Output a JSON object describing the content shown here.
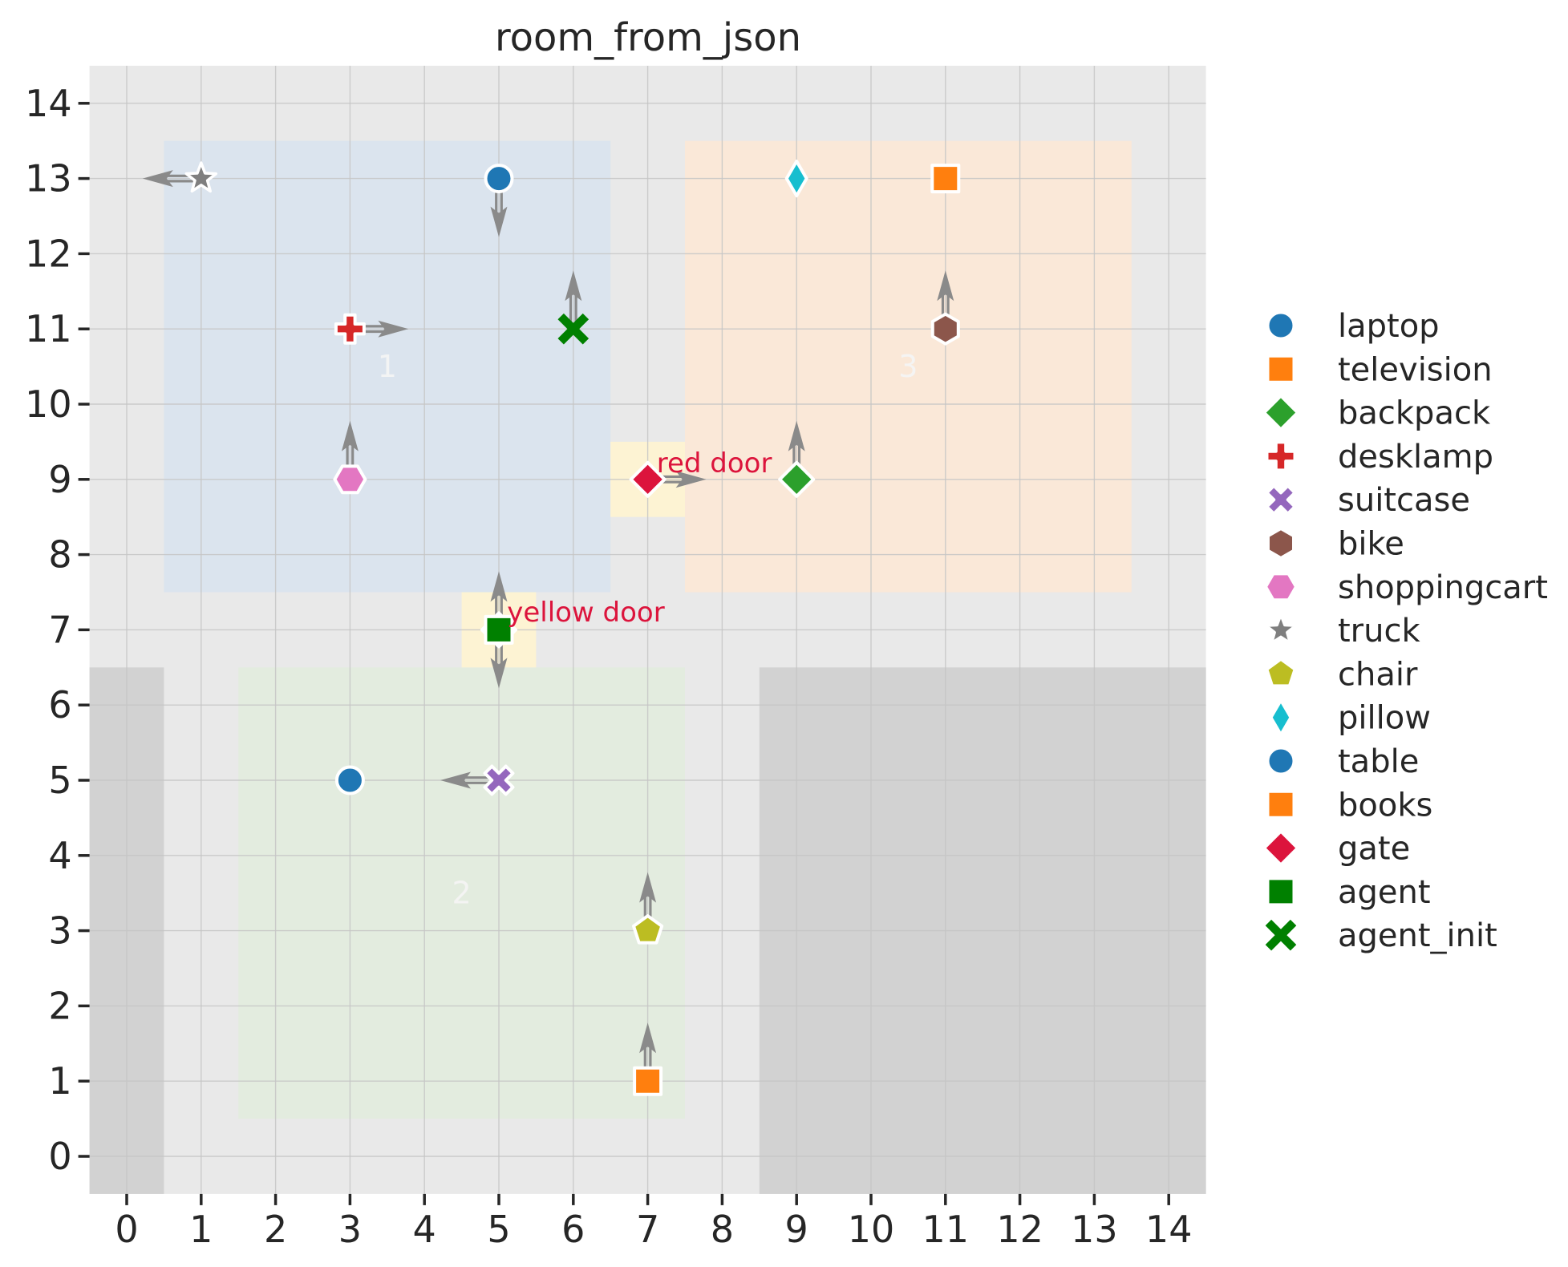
{
  "title": "room_from_json",
  "chart_data": {
    "type": "scatter",
    "title": "room_from_json",
    "xlim": [
      -0.5,
      14.5
    ],
    "ylim": [
      -0.5,
      14.5
    ],
    "x_ticks": [
      0,
      1,
      2,
      3,
      4,
      5,
      6,
      7,
      8,
      9,
      10,
      11,
      12,
      13,
      14
    ],
    "y_ticks": [
      0,
      1,
      2,
      3,
      4,
      5,
      6,
      7,
      8,
      9,
      10,
      11,
      12,
      13,
      14
    ],
    "grid": true,
    "background_color": "#e9e9e9",
    "grid_color": "#c6c6c6",
    "tick_color": "#262626",
    "arrow_color": "#8a8a8a",
    "room_label_color": "#f5f5f5",
    "rooms": [
      {
        "label": "1",
        "x_min": 0.5,
        "x_max": 6.5,
        "y_min": 7.5,
        "y_max": 13.5,
        "fill": "#dbe4ee",
        "label_x": 3.5,
        "label_y": 10.5
      },
      {
        "label": "2",
        "x_min": 1.5,
        "x_max": 7.5,
        "y_min": 0.5,
        "y_max": 6.5,
        "fill": "#e3ecdf",
        "label_x": 4.5,
        "label_y": 3.5
      },
      {
        "label": "3",
        "x_min": 7.5,
        "x_max": 13.5,
        "y_min": 7.5,
        "y_max": 13.5,
        "fill": "#fae8d8",
        "label_x": 10.5,
        "label_y": 10.5
      }
    ],
    "blocked_areas": [
      {
        "name": "blocked-left",
        "x_min": -0.5,
        "x_max": 0.5,
        "y_min": -0.5,
        "y_max": 6.5,
        "fill": "#d2d2d2"
      },
      {
        "name": "blocked-bottom-right",
        "x_min": 8.5,
        "x_max": 14.5,
        "y_min": -0.5,
        "y_max": 6.5,
        "fill": "#d2d2d2"
      }
    ],
    "doors": [
      {
        "label": "red door",
        "x": 7,
        "y": 9,
        "x_min": 6.5,
        "x_max": 7.5,
        "y_min": 8.5,
        "y_max": 9.5,
        "fill": "#fdf3d3",
        "label_x": 7.12,
        "label_y": 9.22,
        "label_color": "#dc143c"
      },
      {
        "label": "yellow door",
        "x": 5,
        "y": 7,
        "x_min": 4.5,
        "x_max": 5.5,
        "y_min": 6.5,
        "y_max": 7.5,
        "fill": "#fdf3d3",
        "label_x": 5.11,
        "label_y": 7.24,
        "label_color": "#dc143c"
      }
    ],
    "objects": [
      {
        "name": "truck",
        "marker": "star",
        "color": "#7f7f7f",
        "x": 1,
        "y": 13,
        "arrow": "left"
      },
      {
        "name": "laptop",
        "marker": "circle",
        "color": "#1f77b4",
        "x": 5,
        "y": 13,
        "arrow": "down"
      },
      {
        "name": "pillow",
        "marker": "thin-diamond",
        "color": "#17becf",
        "x": 9,
        "y": 13,
        "arrow": null
      },
      {
        "name": "television",
        "marker": "square",
        "color": "#ff7f0e",
        "x": 11,
        "y": 13,
        "arrow": null
      },
      {
        "name": "desklamp",
        "marker": "plus",
        "color": "#d62728",
        "x": 3,
        "y": 11,
        "arrow": "right"
      },
      {
        "name": "agent_init",
        "marker": "x-thin",
        "color": "#008000",
        "x": 6,
        "y": 11,
        "arrow": "up"
      },
      {
        "name": "bike",
        "marker": "hexagon",
        "color": "#8c564b",
        "x": 11,
        "y": 11,
        "arrow": "up"
      },
      {
        "name": "shoppingcart",
        "marker": "hexagon-flat",
        "color": "#e377c2",
        "x": 3,
        "y": 9,
        "arrow": "up"
      },
      {
        "name": "gate",
        "marker": "diamond",
        "color": "#dc143c",
        "x": 7,
        "y": 9,
        "arrow": "right"
      },
      {
        "name": "backpack",
        "marker": "diamond",
        "color": "#2ca02c",
        "x": 9,
        "y": 9,
        "arrow": "up"
      },
      {
        "name": "gate",
        "marker": "diamond",
        "color": "#dc143c",
        "x": 5,
        "y": 7,
        "arrow": "up"
      },
      {
        "name": "agent",
        "marker": "square",
        "color": "#008000",
        "x": 5,
        "y": 7,
        "arrow": "down"
      },
      {
        "name": "table",
        "marker": "circle",
        "color": "#1f77b4",
        "x": 3,
        "y": 5,
        "arrow": null
      },
      {
        "name": "suitcase",
        "marker": "x-filled",
        "color": "#9467bd",
        "x": 5,
        "y": 5,
        "arrow": "left"
      },
      {
        "name": "chair",
        "marker": "pentagon",
        "color": "#bcbd22",
        "x": 7,
        "y": 3,
        "arrow": "up"
      },
      {
        "name": "books",
        "marker": "square",
        "color": "#ff7f0e",
        "x": 7,
        "y": 1,
        "arrow": "up"
      }
    ],
    "legend": {
      "position": "right",
      "items": [
        {
          "label": "laptop",
          "marker": "circle",
          "color": "#1f77b4"
        },
        {
          "label": "television",
          "marker": "square",
          "color": "#ff7f0e"
        },
        {
          "label": "backpack",
          "marker": "diamond",
          "color": "#2ca02c"
        },
        {
          "label": "desklamp",
          "marker": "plus",
          "color": "#d62728"
        },
        {
          "label": "suitcase",
          "marker": "x-filled",
          "color": "#9467bd"
        },
        {
          "label": "bike",
          "marker": "hexagon",
          "color": "#8c564b"
        },
        {
          "label": "shoppingcart",
          "marker": "hexagon-flat",
          "color": "#e377c2"
        },
        {
          "label": "truck",
          "marker": "star",
          "color": "#7f7f7f"
        },
        {
          "label": "chair",
          "marker": "pentagon",
          "color": "#bcbd22"
        },
        {
          "label": "pillow",
          "marker": "thin-diamond",
          "color": "#17becf"
        },
        {
          "label": "table",
          "marker": "circle",
          "color": "#1f77b4"
        },
        {
          "label": "books",
          "marker": "square",
          "color": "#ff7f0e"
        },
        {
          "label": "gate",
          "marker": "diamond",
          "color": "#dc143c"
        },
        {
          "label": "agent",
          "marker": "square",
          "color": "#008000"
        },
        {
          "label": "agent_init",
          "marker": "x-thin",
          "color": "#008000"
        }
      ]
    }
  }
}
